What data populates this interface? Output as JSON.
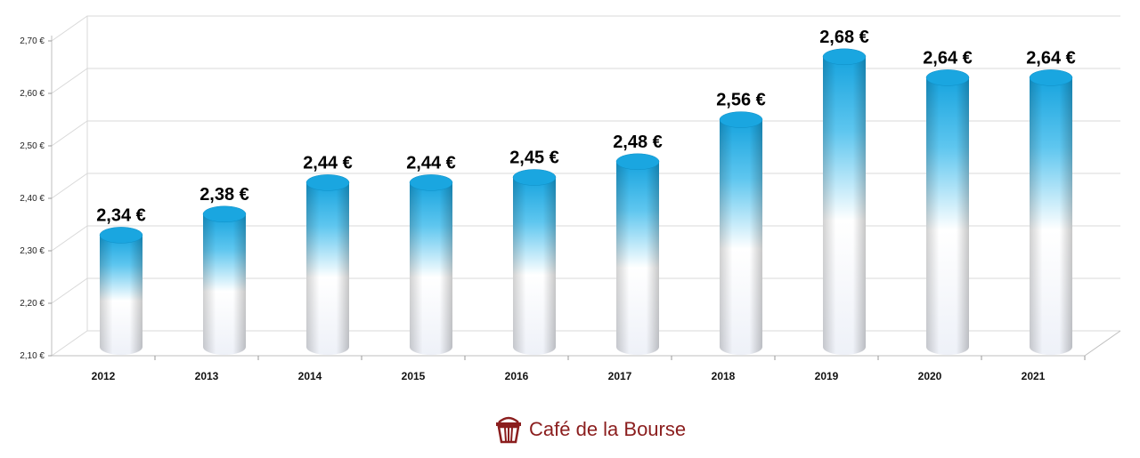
{
  "chart_data": {
    "type": "bar",
    "categories": [
      "2012",
      "2013",
      "2014",
      "2015",
      "2016",
      "2017",
      "2018",
      "2019",
      "2020",
      "2021"
    ],
    "values": [
      2.34,
      2.38,
      2.44,
      2.44,
      2.45,
      2.48,
      2.56,
      2.68,
      2.64,
      2.64
    ],
    "data_labels": [
      "2,34 €",
      "2,38 €",
      "2,44 €",
      "2,44 €",
      "2,45 €",
      "2,48 €",
      "2,56 €",
      "2,68 €",
      "2,64 €",
      "2,64 €"
    ],
    "y_ticks": [
      2.1,
      2.2,
      2.3,
      2.4,
      2.5,
      2.6,
      2.7
    ],
    "y_tick_labels": [
      "2,10 €",
      "2,20 €",
      "2,30 €",
      "2,40 €",
      "2,50 €",
      "2,60 €",
      "2,70 €"
    ],
    "ylim": [
      2.1,
      2.7
    ],
    "title": "",
    "xlabel": "",
    "ylabel": "",
    "grid": true,
    "legend": "none",
    "bar_style": "3d-cylinder",
    "colors": {
      "bar_top": "#1aa6e0",
      "bar_bottom": "#f4f6fb",
      "grid": "#d9d9d9"
    }
  },
  "branding": {
    "name": "Café de la Bourse",
    "icon": "basket-logo-icon",
    "color": "#8b1e1e"
  }
}
